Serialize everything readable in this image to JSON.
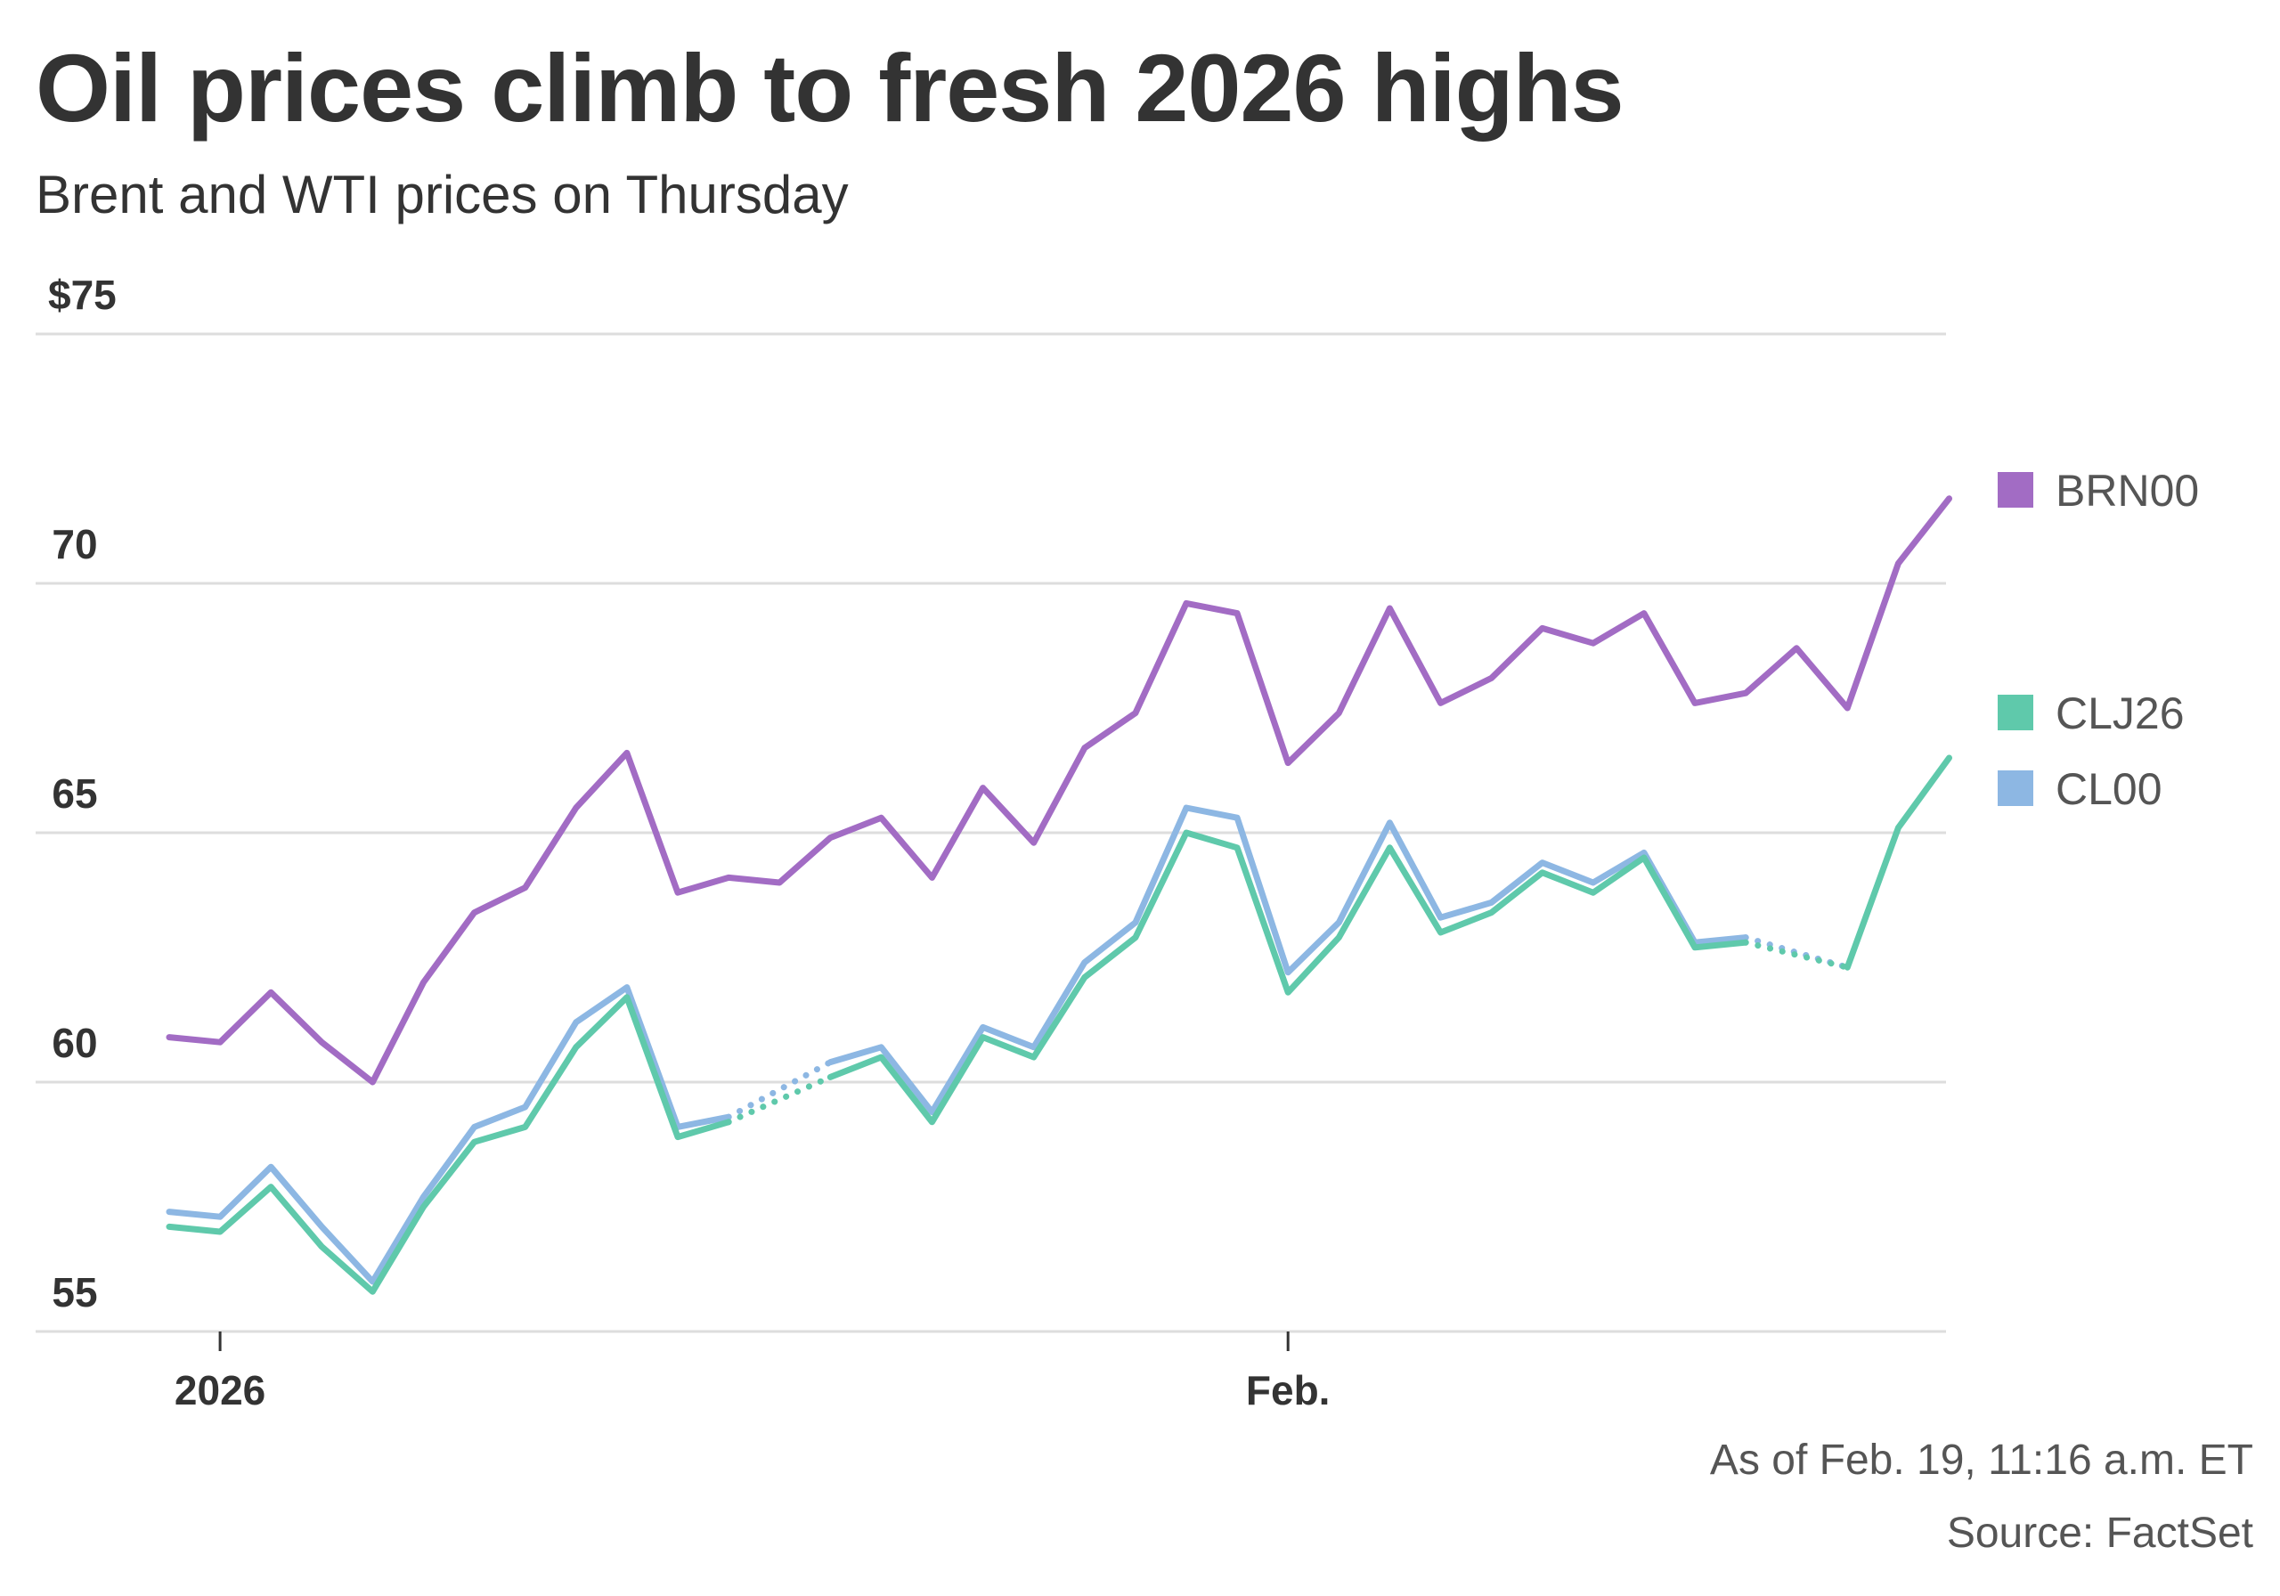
{
  "header": {
    "title": "Oil prices climb to fresh 2026 highs",
    "subtitle": "Brent and WTI prices on Thursday"
  },
  "footer": {
    "as_of": "As of Feb. 19, 11:16 a.m. ET",
    "source": "Source: FactSet"
  },
  "chart_data": {
    "type": "line",
    "title": "Oil prices climb to fresh 2026 highs",
    "subtitle": "Brent and WTI prices on Thursday",
    "x_ticks": [
      "2026",
      "Feb."
    ],
    "y_ticks": [
      "$75",
      "70",
      "65",
      "60",
      "55"
    ],
    "y_tick_values": [
      75,
      70,
      65,
      60,
      55
    ],
    "ylim": [
      55,
      75
    ],
    "grid": true,
    "legend_position": "right",
    "series": [
      {
        "name": "BRN00",
        "color": "#a26cc4",
        "points": [
          [
            "2025-12-31",
            60.9
          ],
          [
            "2026-01-01",
            60.8
          ],
          [
            "2026-01-02",
            61.8
          ],
          [
            "2026-01-03",
            60.8
          ],
          [
            "2026-01-04",
            60.0
          ],
          [
            "2026-01-05",
            62.0
          ],
          [
            "2026-01-06",
            63.4
          ],
          [
            "2026-01-07",
            63.9
          ],
          [
            "2026-01-08",
            65.5
          ],
          [
            "2026-01-09",
            66.6
          ],
          [
            "2026-01-10",
            63.8
          ],
          [
            "2026-01-11",
            64.1
          ],
          [
            "2026-01-12",
            64.0
          ],
          [
            "2026-01-13",
            64.9
          ],
          [
            "2026-01-14",
            65.3
          ],
          [
            "2026-01-15",
            64.1
          ],
          [
            "2026-01-16",
            65.9
          ],
          [
            "2026-01-17",
            64.8
          ],
          [
            "2026-01-18",
            66.7
          ],
          [
            "2026-01-19",
            67.4
          ],
          [
            "2026-01-20",
            69.6
          ],
          [
            "2026-01-21",
            69.4
          ],
          [
            "2026-01-22",
            66.4
          ],
          [
            "2026-01-23",
            67.4
          ],
          [
            "2026-01-24",
            69.5
          ],
          [
            "2026-01-25",
            67.6
          ],
          [
            "2026-01-26",
            68.1
          ],
          [
            "2026-01-27",
            69.1
          ],
          [
            "2026-01-28",
            68.8
          ],
          [
            "2026-01-29",
            69.4
          ],
          [
            "2026-01-30",
            67.6
          ],
          [
            "2026-01-31",
            67.8
          ],
          [
            "2026-02-01",
            68.7
          ],
          [
            "2026-02-02",
            67.5
          ],
          [
            "2026-02-03",
            70.4
          ],
          [
            "2026-02-04",
            71.7
          ]
        ]
      },
      {
        "name": "CLJ26",
        "color": "#5fc9ab",
        "points": [
          [
            "2025-12-31",
            57.1
          ],
          [
            "2026-01-01",
            57.0
          ],
          [
            "2026-01-02",
            57.9
          ],
          [
            "2026-01-03",
            56.7
          ],
          [
            "2026-01-04",
            55.8
          ],
          [
            "2026-01-05",
            57.5
          ],
          [
            "2026-01-06",
            58.8
          ],
          [
            "2026-01-07",
            59.1
          ],
          [
            "2026-01-08",
            60.7
          ],
          [
            "2026-01-09",
            61.7
          ],
          [
            "2026-01-10",
            58.9
          ],
          [
            "2026-01-11",
            59.2
          ],
          [
            "2026-01-12",
            null
          ],
          [
            "2026-01-13",
            60.1
          ],
          [
            "2026-01-14",
            60.5
          ],
          [
            "2026-01-15",
            59.2
          ],
          [
            "2026-01-16",
            60.9
          ],
          [
            "2026-01-17",
            60.5
          ],
          [
            "2026-01-18",
            62.1
          ],
          [
            "2026-01-19",
            62.9
          ],
          [
            "2026-01-20",
            65.0
          ],
          [
            "2026-01-21",
            64.7
          ],
          [
            "2026-01-22",
            61.8
          ],
          [
            "2026-01-23",
            62.9
          ],
          [
            "2026-01-24",
            64.7
          ],
          [
            "2026-01-25",
            63.0
          ],
          [
            "2026-01-26",
            63.4
          ],
          [
            "2026-01-27",
            64.2
          ],
          [
            "2026-01-28",
            63.8
          ],
          [
            "2026-01-29",
            64.5
          ],
          [
            "2026-01-30",
            62.7
          ],
          [
            "2026-01-31",
            62.8
          ],
          [
            "2026-02-01",
            null
          ],
          [
            "2026-02-02",
            62.3
          ],
          [
            "2026-02-03",
            65.1
          ],
          [
            "2026-02-04",
            66.5
          ]
        ]
      },
      {
        "name": "CL00",
        "color": "#8db7e3",
        "points": [
          [
            "2025-12-31",
            57.4
          ],
          [
            "2026-01-01",
            57.3
          ],
          [
            "2026-01-02",
            58.3
          ],
          [
            "2026-01-03",
            57.1
          ],
          [
            "2026-01-04",
            56.0
          ],
          [
            "2026-01-05",
            57.7
          ],
          [
            "2026-01-06",
            59.1
          ],
          [
            "2026-01-07",
            59.5
          ],
          [
            "2026-01-08",
            61.2
          ],
          [
            "2026-01-09",
            61.9
          ],
          [
            "2026-01-10",
            59.1
          ],
          [
            "2026-01-11",
            59.3
          ],
          [
            "2026-01-12",
            null
          ],
          [
            "2026-01-13",
            60.4
          ],
          [
            "2026-01-14",
            60.7
          ],
          [
            "2026-01-15",
            59.4
          ],
          [
            "2026-01-16",
            61.1
          ],
          [
            "2026-01-17",
            60.7
          ],
          [
            "2026-01-18",
            62.4
          ],
          [
            "2026-01-19",
            63.2
          ],
          [
            "2026-01-20",
            65.5
          ],
          [
            "2026-01-21",
            65.3
          ],
          [
            "2026-01-22",
            62.2
          ],
          [
            "2026-01-23",
            63.2
          ],
          [
            "2026-01-24",
            65.2
          ],
          [
            "2026-01-25",
            63.3
          ],
          [
            "2026-01-26",
            63.6
          ],
          [
            "2026-01-27",
            64.4
          ],
          [
            "2026-01-28",
            64.0
          ],
          [
            "2026-01-29",
            64.6
          ],
          [
            "2026-01-30",
            62.8
          ],
          [
            "2026-01-31",
            62.9
          ],
          [
            "2026-02-01",
            null
          ],
          [
            "2026-02-02",
            62.3
          ]
        ]
      }
    ]
  }
}
